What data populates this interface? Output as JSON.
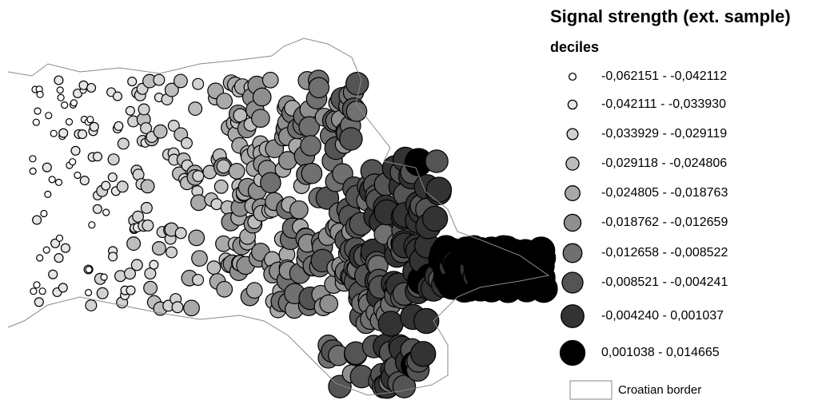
{
  "legend": {
    "title": "Signal strength (ext. sample)",
    "subtitle": "deciles",
    "classes": [
      {
        "label": "-0,062151 - -0,042112",
        "color": "#ffffff"
      },
      {
        "label": "-0,042111 - -0,033930",
        "color": "#e6e6e6"
      },
      {
        "label": "-0,033929 - -0,029119",
        "color": "#d2d2d2"
      },
      {
        "label": "-0,029118 - -0,024806",
        "color": "#bdbdbd"
      },
      {
        "label": "-0,024805 - -0,018763",
        "color": "#a9a9a9"
      },
      {
        "label": "-0,018762 - -0,012659",
        "color": "#8f8f8f"
      },
      {
        "label": "-0,012658 - -0,008522",
        "color": "#707070"
      },
      {
        "label": "-0,008521 - -0,004241",
        "color": "#545454"
      },
      {
        "label": "-0,004240 - 0,001037",
        "color": "#333333"
      },
      {
        "label": "0,001038 - 0,014665",
        "color": "#000000"
      }
    ],
    "border_label": "Croatian border"
  }
}
